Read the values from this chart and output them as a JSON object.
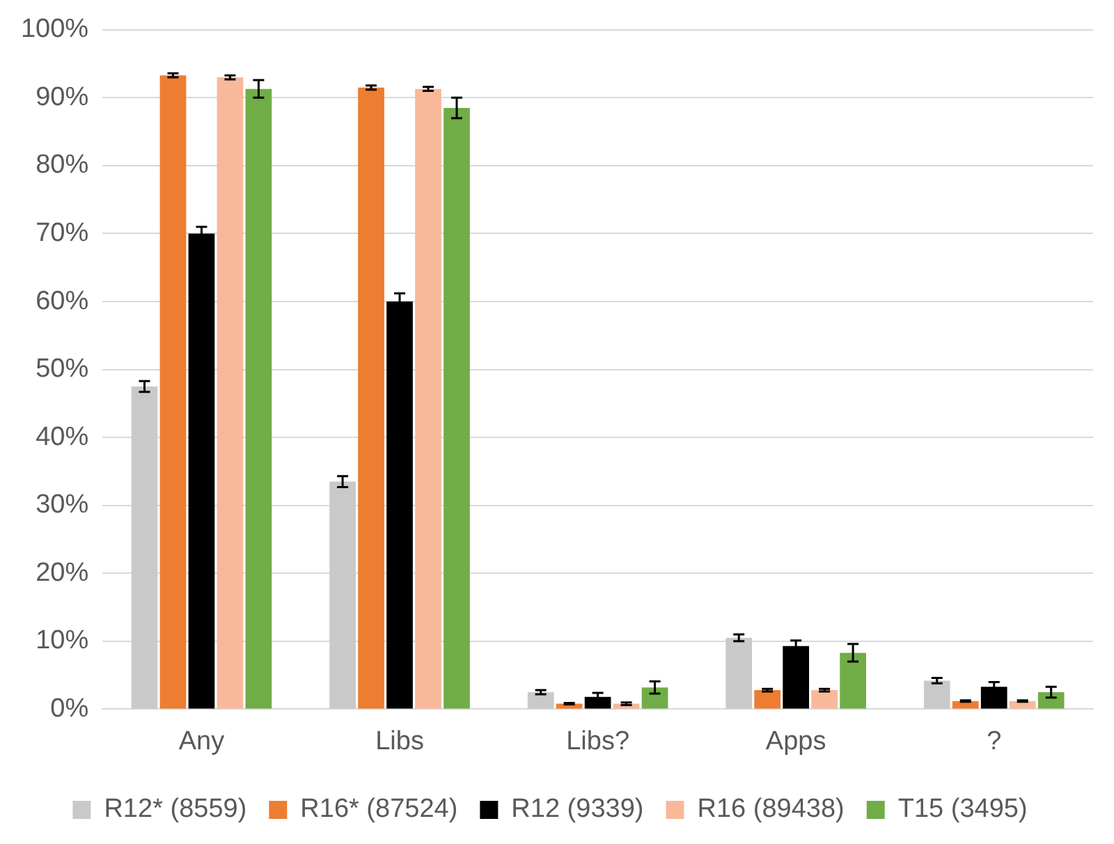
{
  "chart_data": {
    "type": "bar",
    "categories": [
      "Any",
      "Libs",
      "Libs?",
      "Apps",
      "?"
    ],
    "series": [
      {
        "name": "R12* (8559)",
        "color": "#c9c9c9",
        "values": [
          47.5,
          33.5,
          2.5,
          10.5,
          4.2
        ],
        "errors": [
          0.8,
          0.8,
          0.3,
          0.5,
          0.4
        ]
      },
      {
        "name": "R16* (87524)",
        "color": "#ed7d31",
        "values": [
          93.3,
          91.5,
          0.8,
          2.8,
          1.2
        ],
        "errors": [
          0.3,
          0.3,
          0.1,
          0.2,
          0.1
        ]
      },
      {
        "name": "R12 (9339)",
        "color": "#000000",
        "values": [
          70,
          60,
          1.8,
          9.3,
          3.3
        ],
        "errors": [
          1,
          1.2,
          0.6,
          0.8,
          0.7
        ]
      },
      {
        "name": "R16 (89438)",
        "color": "#f7b99a",
        "values": [
          93,
          91.3,
          0.8,
          2.8,
          1.2
        ],
        "errors": [
          0.3,
          0.3,
          0.2,
          0.2,
          0.1
        ]
      },
      {
        "name": "T15 (3495)",
        "color": "#70ad47",
        "values": [
          91.3,
          88.5,
          3.2,
          8.3,
          2.5
        ],
        "errors": [
          1.3,
          1.5,
          0.9,
          1.3,
          0.8
        ]
      }
    ],
    "ylim": [
      0,
      100
    ],
    "yticks": [
      {
        "value": 0,
        "label": "0%"
      },
      {
        "value": 10,
        "label": "10%"
      },
      {
        "value": 20,
        "label": "20%"
      },
      {
        "value": 30,
        "label": "30%"
      },
      {
        "value": 40,
        "label": "40%"
      },
      {
        "value": 50,
        "label": "50%"
      },
      {
        "value": 60,
        "label": "60%"
      },
      {
        "value": 70,
        "label": "70%"
      },
      {
        "value": 80,
        "label": "80%"
      },
      {
        "value": 90,
        "label": "90%"
      },
      {
        "value": 100,
        "label": "100%"
      }
    ],
    "grid": "y",
    "legend": "bottom"
  }
}
